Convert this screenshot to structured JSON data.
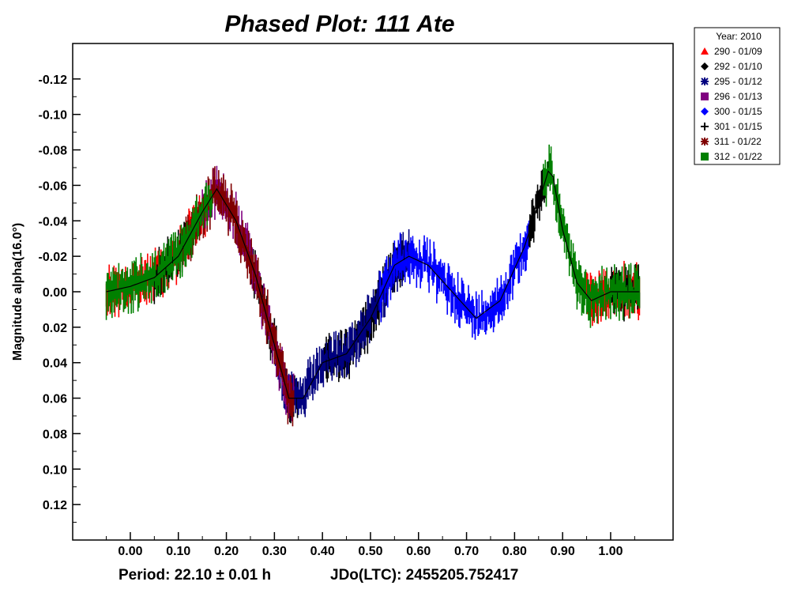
{
  "chart_data": {
    "type": "scatter",
    "title": "Phased Plot: 111 Ate",
    "xlabel": "",
    "ylabel": "Magnitude alpha(16.0°)",
    "xlim": [
      -0.12,
      1.13
    ],
    "ylim": [
      0.14,
      -0.14
    ],
    "y_inverted": true,
    "x_ticks": [
      "0.00",
      "0.10",
      "0.20",
      "0.30",
      "0.40",
      "0.50",
      "0.60",
      "0.70",
      "0.80",
      "0.90",
      "1.00"
    ],
    "y_ticks": [
      "-0.12",
      "-0.10",
      "-0.08",
      "-0.06",
      "-0.04",
      "-0.02",
      "0.00",
      "0.02",
      "0.04",
      "0.06",
      "0.08",
      "0.10",
      "0.12"
    ],
    "grid": false,
    "legend_position": "outside-top-right",
    "legend_title": "Year: 2010",
    "period_label": "Period: 22.10 ± 0.01 h",
    "epoch_label": "JDo(LTC): 2455205.752417",
    "series": [
      {
        "name": "290 - 01/09",
        "color": "#ff0000",
        "marker": "triangle",
        "x_range": [
          -0.05,
          1.06
        ],
        "segments": [
          [
            -0.05,
            0.16
          ],
          [
            0.95,
            1.06
          ]
        ]
      },
      {
        "name": "292 - 01/10",
        "color": "#000000",
        "marker": "diamond",
        "x_range": [
          0.05,
          0.57
        ],
        "segments": [
          [
            0.05,
            0.12
          ],
          [
            0.25,
            0.35
          ],
          [
            0.4,
            0.57
          ]
        ]
      },
      {
        "name": "295 - 01/12",
        "color": "#000080",
        "marker": "asterisk",
        "x_range": [
          0.3,
          0.58
        ],
        "segments": [
          [
            0.3,
            0.58
          ]
        ]
      },
      {
        "name": "296 - 01/13",
        "color": "#800080",
        "marker": "square",
        "x_range": [
          0.15,
          0.34
        ],
        "segments": [
          [
            0.15,
            0.34
          ]
        ]
      },
      {
        "name": "300 - 01/15",
        "color": "#0000ff",
        "marker": "diamond",
        "x_range": [
          0.52,
          0.83
        ],
        "segments": [
          [
            0.52,
            0.83
          ]
        ]
      },
      {
        "name": "301 - 01/15",
        "color": "#000000",
        "marker": "plus",
        "x_range": [
          0.83,
          1.06
        ],
        "segments": [
          [
            0.83,
            0.87
          ],
          [
            1.0,
            1.06
          ]
        ]
      },
      {
        "name": "311 - 01/22",
        "color": "#800000",
        "marker": "asterisk",
        "x_range": [
          0.1,
          0.34
        ],
        "segments": [
          [
            0.1,
            0.34
          ]
        ]
      },
      {
        "name": "312 - 01/22",
        "color": "#008000",
        "marker": "square",
        "x_range": [
          -0.05,
          1.06
        ],
        "segments": [
          [
            -0.05,
            0.17
          ],
          [
            0.86,
            1.06
          ]
        ]
      }
    ],
    "lightcurve": {
      "x": [
        -0.05,
        0.0,
        0.05,
        0.1,
        0.15,
        0.18,
        0.22,
        0.26,
        0.3,
        0.33,
        0.36,
        0.4,
        0.45,
        0.5,
        0.55,
        0.58,
        0.62,
        0.67,
        0.72,
        0.77,
        0.82,
        0.85,
        0.87,
        0.88,
        0.9,
        0.93,
        0.96,
        1.0,
        1.06
      ],
      "y": [
        0.0,
        -0.003,
        -0.008,
        -0.02,
        -0.045,
        -0.058,
        -0.04,
        -0.01,
        0.03,
        0.06,
        0.06,
        0.04,
        0.035,
        0.015,
        -0.015,
        -0.02,
        -0.015,
        0.0,
        0.015,
        0.005,
        -0.025,
        -0.05,
        -0.068,
        -0.065,
        -0.035,
        -0.005,
        0.005,
        0.0,
        0.0
      ]
    }
  }
}
